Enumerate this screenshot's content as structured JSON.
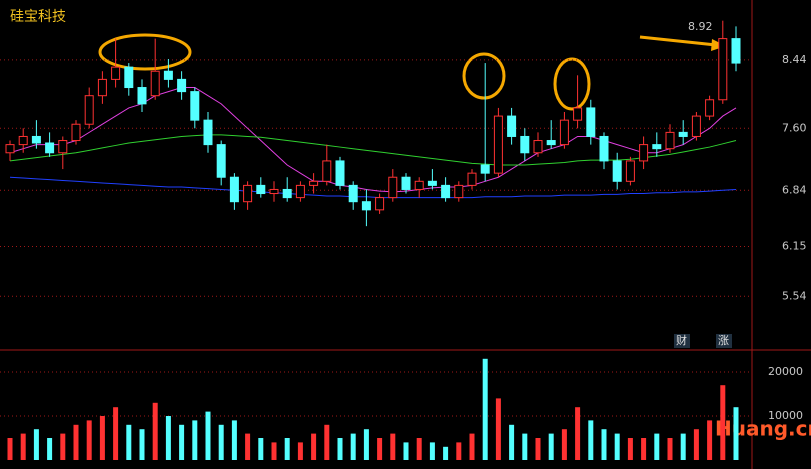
{
  "chart_data": [
    {
      "type": "candlestick",
      "title": "硅宝科技",
      "annotation": "8.92",
      "up_color": "#ff3232",
      "down_color": "#54ffff",
      "ylim": [
        5.2,
        9.1
      ],
      "yticks": [
        5.54,
        6.15,
        6.84,
        {
          "value": 7.6,
          "label": "7.60"
        },
        8.44
      ],
      "grid": true,
      "open": [
        7.3,
        7.4,
        7.5,
        7.42,
        7.3,
        7.45,
        7.65,
        8.0,
        8.2,
        8.35,
        8.1,
        8.0,
        8.3,
        8.2,
        8.05,
        7.7,
        7.4,
        7.0,
        6.7,
        6.9,
        6.8,
        6.85,
        6.75,
        6.9,
        6.95,
        7.2,
        6.9,
        6.7,
        6.6,
        6.75,
        7.0,
        6.85,
        6.95,
        6.9,
        6.75,
        6.9,
        7.15,
        7.05,
        7.75,
        7.5,
        7.3,
        7.45,
        7.4,
        7.7,
        7.85,
        7.5,
        7.2,
        6.95,
        7.2,
        7.4,
        7.35,
        7.55,
        7.5,
        7.75,
        7.95,
        8.7
      ],
      "high": [
        7.45,
        7.6,
        7.7,
        7.55,
        7.5,
        7.7,
        8.1,
        8.3,
        8.7,
        8.4,
        8.2,
        8.7,
        8.45,
        8.3,
        8.1,
        7.8,
        7.45,
        7.05,
        6.95,
        7.0,
        6.95,
        7.0,
        6.95,
        7.05,
        7.4,
        7.25,
        6.95,
        6.85,
        6.8,
        7.1,
        7.05,
        7.0,
        7.1,
        7.0,
        6.95,
        7.1,
        8.4,
        7.85,
        7.85,
        7.6,
        7.55,
        7.7,
        7.8,
        8.25,
        7.95,
        7.55,
        7.3,
        7.25,
        7.5,
        7.55,
        7.65,
        7.7,
        7.8,
        8.0,
        8.92,
        8.85
      ],
      "low": [
        7.2,
        7.3,
        7.35,
        7.25,
        7.1,
        7.4,
        7.6,
        7.9,
        8.1,
        8.0,
        7.8,
        7.95,
        8.1,
        7.95,
        7.6,
        7.3,
        6.9,
        6.6,
        6.6,
        6.75,
        6.7,
        6.7,
        6.7,
        6.8,
        6.9,
        6.85,
        6.6,
        6.4,
        6.55,
        6.7,
        6.8,
        6.75,
        6.85,
        6.7,
        6.7,
        6.85,
        6.95,
        7.0,
        7.4,
        7.2,
        7.25,
        7.35,
        7.35,
        7.6,
        7.4,
        7.1,
        6.85,
        6.9,
        7.1,
        7.25,
        7.3,
        7.4,
        7.45,
        7.7,
        7.9,
        8.3
      ],
      "close": [
        7.4,
        7.5,
        7.42,
        7.3,
        7.45,
        7.65,
        8.0,
        8.2,
        8.35,
        8.1,
        7.9,
        8.3,
        8.2,
        8.05,
        7.7,
        7.4,
        7.0,
        6.7,
        6.9,
        6.8,
        6.85,
        6.75,
        6.9,
        6.95,
        7.2,
        6.9,
        6.7,
        6.6,
        6.75,
        7.0,
        6.85,
        6.95,
        6.9,
        6.75,
        6.9,
        7.05,
        7.05,
        7.75,
        7.5,
        7.3,
        7.45,
        7.4,
        7.7,
        7.85,
        7.5,
        7.2,
        6.95,
        7.2,
        7.4,
        7.35,
        7.55,
        7.5,
        7.75,
        7.95,
        8.7,
        8.4
      ],
      "lines": [
        {
          "color": "#e040e0",
          "values": [
            7.3,
            7.35,
            7.4,
            7.4,
            7.4,
            7.45,
            7.55,
            7.65,
            7.75,
            7.85,
            7.9,
            8.0,
            8.05,
            8.1,
            8.1,
            8.0,
            7.9,
            7.75,
            7.6,
            7.45,
            7.3,
            7.15,
            7.05,
            6.95,
            6.95,
            6.9,
            6.88,
            6.85,
            6.83,
            6.82,
            6.83,
            6.85,
            6.87,
            6.88,
            6.88,
            6.9,
            6.95,
            7.0,
            7.1,
            7.2,
            7.3,
            7.35,
            7.4,
            7.5,
            7.5,
            7.45,
            7.4,
            7.35,
            7.3,
            7.3,
            7.35,
            7.4,
            7.5,
            7.6,
            7.75,
            7.85
          ]
        },
        {
          "color": "#30d030",
          "values": [
            7.2,
            7.22,
            7.24,
            7.26,
            7.28,
            7.3,
            7.33,
            7.36,
            7.39,
            7.42,
            7.44,
            7.46,
            7.48,
            7.5,
            7.51,
            7.52,
            7.52,
            7.51,
            7.5,
            7.49,
            7.47,
            7.45,
            7.43,
            7.41,
            7.39,
            7.37,
            7.35,
            7.33,
            7.31,
            7.29,
            7.27,
            7.25,
            7.23,
            7.21,
            7.19,
            7.17,
            7.16,
            7.15,
            7.15,
            7.15,
            7.16,
            7.17,
            7.18,
            7.2,
            7.21,
            7.21,
            7.21,
            7.22,
            7.24,
            7.26,
            7.28,
            7.31,
            7.34,
            7.37,
            7.41,
            7.45
          ]
        },
        {
          "color": "#2040ff",
          "values": [
            7.0,
            6.99,
            6.98,
            6.97,
            6.96,
            6.95,
            6.94,
            6.93,
            6.92,
            6.91,
            6.9,
            6.89,
            6.88,
            6.88,
            6.87,
            6.86,
            6.85,
            6.84,
            6.83,
            6.82,
            6.81,
            6.8,
            6.79,
            6.78,
            6.77,
            6.77,
            6.76,
            6.76,
            6.75,
            6.75,
            6.75,
            6.75,
            6.75,
            6.75,
            6.75,
            6.75,
            6.76,
            6.76,
            6.76,
            6.77,
            6.77,
            6.77,
            6.78,
            6.78,
            6.78,
            6.79,
            6.79,
            6.8,
            6.8,
            6.81,
            6.81,
            6.82,
            6.82,
            6.83,
            6.84,
            6.85
          ]
        }
      ]
    },
    {
      "type": "bar",
      "ylim": [
        0,
        25000
      ],
      "yticks": [
        10000,
        20000
      ],
      "values": [
        5000,
        6000,
        7000,
        5000,
        6000,
        8000,
        9000,
        10000,
        12000,
        8000,
        7000,
        13000,
        10000,
        8000,
        9000,
        11000,
        8000,
        9000,
        6000,
        5000,
        4000,
        5000,
        4000,
        6000,
        8000,
        5000,
        6000,
        7000,
        5000,
        6000,
        4000,
        5000,
        4000,
        3000,
        4000,
        6000,
        23000,
        14000,
        8000,
        6000,
        5000,
        6000,
        7000,
        12000,
        9000,
        7000,
        6000,
        5000,
        5000,
        6000,
        5000,
        6000,
        7000,
        9000,
        17000,
        12000
      ]
    }
  ],
  "buttons": [
    "财",
    "涨"
  ],
  "watermark": "Huang.cn"
}
